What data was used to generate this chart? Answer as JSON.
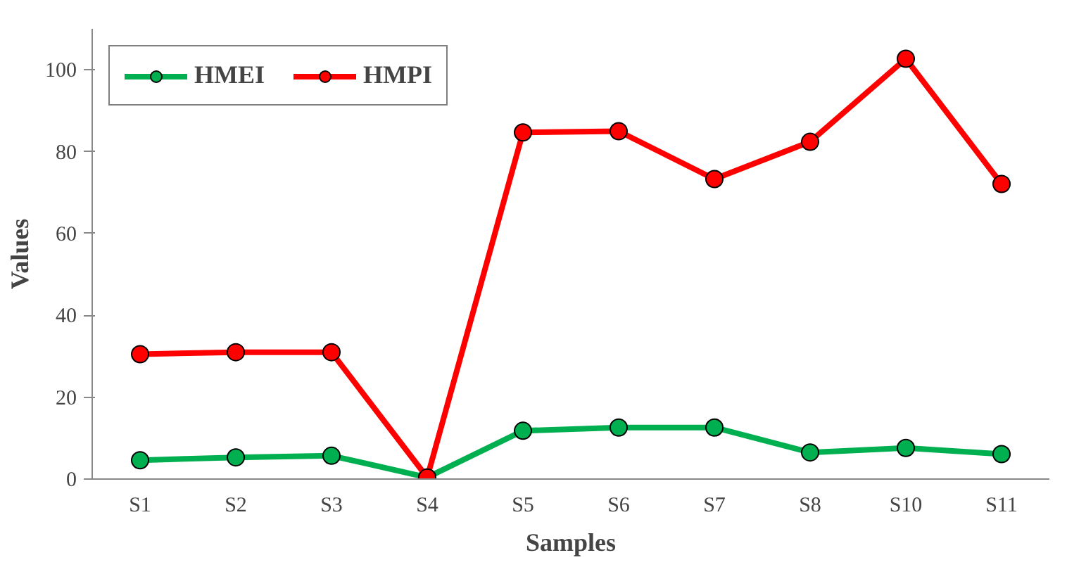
{
  "chart_data": {
    "type": "line",
    "xlabel": "Samples",
    "ylabel": "Values",
    "categories": [
      "S1",
      "S2",
      "S3",
      "S4",
      "S5",
      "S6",
      "S7",
      "S8",
      "S10",
      "S11"
    ],
    "series": [
      {
        "name": "HMEI",
        "color": "#00b050",
        "values": [
          4.6,
          5.3,
          5.7,
          0.4,
          11.8,
          12.6,
          12.6,
          6.5,
          7.6,
          6.1
        ]
      },
      {
        "name": "HMPI",
        "color": "#ff0000",
        "values": [
          30.5,
          31,
          31,
          0.4,
          84.7,
          85,
          73.3,
          82.4,
          102.7,
          72.1
        ]
      }
    ],
    "ylim": [
      0,
      110
    ],
    "yticks": [
      0,
      20,
      40,
      60,
      80,
      100
    ],
    "grid": false,
    "legend": "top left",
    "marker": "circle",
    "line_style": "solid"
  }
}
